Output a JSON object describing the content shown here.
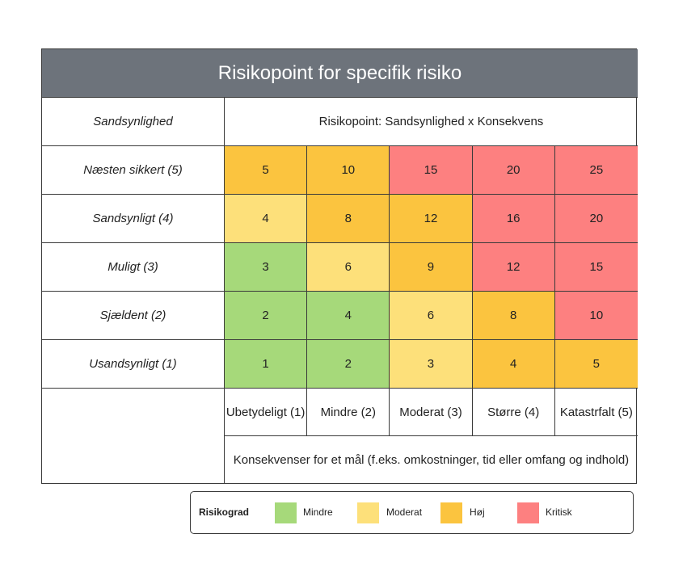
{
  "title": "Risikopoint for specifik risiko",
  "header": {
    "row_header": "Sandsynlighed",
    "formula": "Risikopoint: Sandsynlighed x Konsekvens"
  },
  "rows": [
    {
      "label": "Næsten sikkert (5)",
      "cells": [
        {
          "value": "5",
          "level": "hoej"
        },
        {
          "value": "10",
          "level": "hoej"
        },
        {
          "value": "15",
          "level": "kritisk"
        },
        {
          "value": "20",
          "level": "kritisk"
        },
        {
          "value": "25",
          "level": "kritisk"
        }
      ]
    },
    {
      "label": "Sandsynligt (4)",
      "cells": [
        {
          "value": "4",
          "level": "moderat"
        },
        {
          "value": "8",
          "level": "hoej"
        },
        {
          "value": "12",
          "level": "hoej"
        },
        {
          "value": "16",
          "level": "kritisk"
        },
        {
          "value": "20",
          "level": "kritisk"
        }
      ]
    },
    {
      "label": "Muligt (3)",
      "cells": [
        {
          "value": "3",
          "level": "mindre"
        },
        {
          "value": "6",
          "level": "moderat"
        },
        {
          "value": "9",
          "level": "hoej"
        },
        {
          "value": "12",
          "level": "kritisk"
        },
        {
          "value": "15",
          "level": "kritisk"
        }
      ]
    },
    {
      "label": "Sjældent (2)",
      "cells": [
        {
          "value": "2",
          "level": "mindre"
        },
        {
          "value": "4",
          "level": "mindre"
        },
        {
          "value": "6",
          "level": "moderat"
        },
        {
          "value": "8",
          "level": "hoej"
        },
        {
          "value": "10",
          "level": "kritisk"
        }
      ]
    },
    {
      "label": "Usandsynligt (1)",
      "cells": [
        {
          "value": "1",
          "level": "mindre"
        },
        {
          "value": "2",
          "level": "mindre"
        },
        {
          "value": "3",
          "level": "moderat"
        },
        {
          "value": "4",
          "level": "hoej"
        },
        {
          "value": "5",
          "level": "hoej"
        }
      ]
    }
  ],
  "columns": [
    "Ubetydeligt (1)",
    "Mindre (2)",
    "Moderat (3)",
    "Større (4)",
    "Katastrfalt (5)"
  ],
  "consequence_label": "Konsekvenser for et mål (f.eks. omkostninger, tid eller omfang og indhold)",
  "legend": {
    "title": "Risikograd",
    "items": [
      {
        "label": "Mindre",
        "color": "#a6d97a"
      },
      {
        "label": "Moderat",
        "color": "#fde07a"
      },
      {
        "label": "Høj",
        "color": "#fbc43f"
      },
      {
        "label": "Kritisk",
        "color": "#fd8080"
      }
    ]
  },
  "level_colors": {
    "mindre": "#a6d97a",
    "moderat": "#fde07a",
    "hoej": "#fbc43f",
    "kritisk": "#fd8080"
  }
}
